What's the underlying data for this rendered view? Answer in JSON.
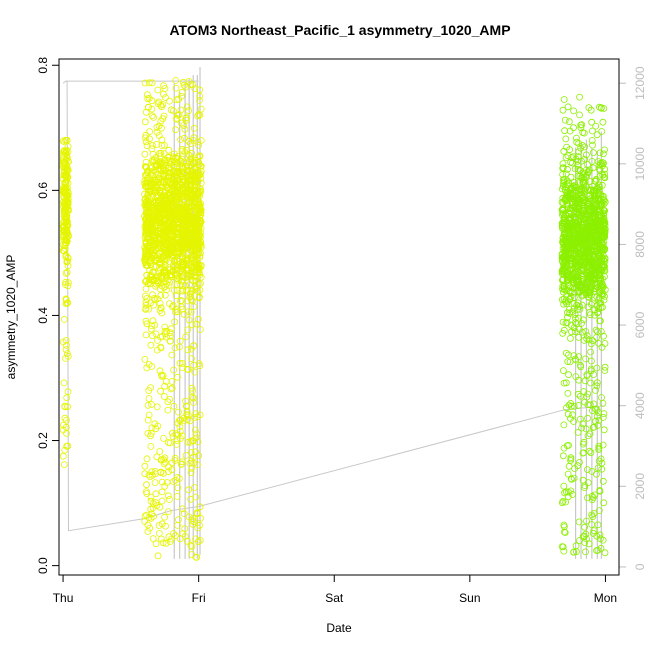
{
  "chart_data": {
    "type": "scatter",
    "title": "ATOM3 Northeast_Pacific_1 asymmetry_1020_AMP",
    "xlabel": "Date",
    "ylabel": "asymmetry_1020_AMP",
    "xlim": [
      -0.03,
      4.1
    ],
    "ylim": [
      -0.015,
      0.81
    ],
    "x_ticks": [
      {
        "value": 0,
        "label": "Thu"
      },
      {
        "value": 1,
        "label": "Fri"
      },
      {
        "value": 2,
        "label": "Sat"
      },
      {
        "value": 3,
        "label": "Sun"
      },
      {
        "value": 4,
        "label": "Mon"
      }
    ],
    "y_ticks": [
      0.0,
      0.2,
      0.4,
      0.6,
      0.8
    ],
    "y_tick_labels": [
      "0.0",
      "0.2",
      "0.4",
      "0.6",
      "0.8"
    ],
    "secondary_y": {
      "lim": [
        -200,
        12600
      ],
      "ticks": [
        0,
        2000,
        4000,
        6000,
        8000,
        10000,
        12000
      ],
      "tick_labels": [
        "0",
        "2000",
        "4000",
        "6000",
        "8000",
        "10000",
        "12000"
      ],
      "color": "#bdbdbd"
    },
    "series": [
      {
        "marker": "open-circle",
        "color": "#e5f500",
        "clusters": [
          {
            "x_range": [
              0.0,
              0.04
            ],
            "y_range": [
              0.13,
              0.68
            ],
            "y_center": 0.58,
            "count": 220
          },
          {
            "x_range": [
              0.6,
              1.02
            ],
            "y_range": [
              0.01,
              0.78
            ],
            "y_center": 0.55,
            "count": 1800
          }
        ]
      },
      {
        "marker": "open-circle",
        "color": "#8cf000",
        "clusters": [
          {
            "x_range": [
              3.68,
              4.0
            ],
            "y_range": [
              0.02,
              0.75
            ],
            "y_center": 0.52,
            "count": 1400
          }
        ]
      }
    ],
    "secondary_series": {
      "color": "#c8c8c8",
      "polyline": [
        [
          0.0,
          12000
        ],
        [
          0.02,
          12050
        ],
        [
          0.03,
          12050
        ],
        [
          0.04,
          900
        ],
        [
          0.6,
          1200
        ],
        [
          0.8,
          1400
        ],
        [
          1.0,
          1500
        ],
        [
          3.7,
          3900
        ],
        [
          4.0,
          4000
        ]
      ],
      "top_segment": {
        "x_range": [
          0.02,
          1.0
        ],
        "value": 12050
      },
      "verticals": [
        [
          0.82,
          200,
          12000
        ],
        [
          0.86,
          200,
          11800
        ],
        [
          0.9,
          200,
          12000
        ],
        [
          0.93,
          200,
          12100
        ],
        [
          0.96,
          200,
          12200
        ],
        [
          0.99,
          200,
          12200
        ],
        [
          1.01,
          300,
          12400
        ],
        [
          3.78,
          200,
          10400
        ],
        [
          3.82,
          200,
          10500
        ],
        [
          3.86,
          200,
          10600
        ],
        [
          3.9,
          200,
          10400
        ],
        [
          3.94,
          200,
          10300
        ],
        [
          3.97,
          200,
          10800
        ]
      ]
    },
    "grid": false,
    "legend": "none"
  }
}
